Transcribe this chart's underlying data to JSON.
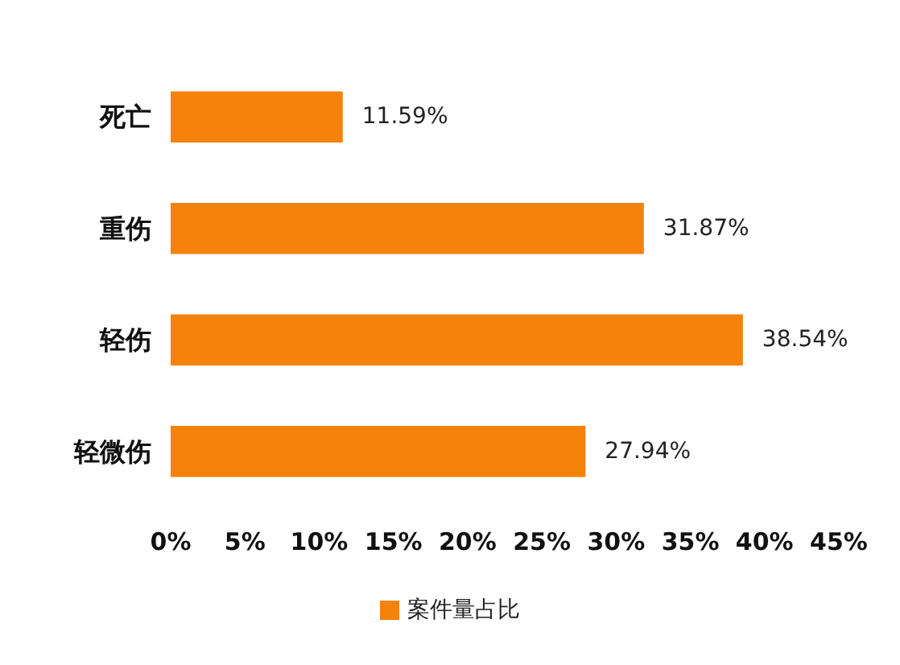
{
  "chart_data": {
    "type": "bar",
    "orientation": "horizontal",
    "categories": [
      "死亡",
      "重伤",
      "轻伤",
      "轻微伤"
    ],
    "series": [
      {
        "name": "案件量占比",
        "color": "#f5820a",
        "values": [
          11.59,
          31.87,
          38.54,
          27.94
        ],
        "value_labels": [
          "11.59%",
          "31.87%",
          "38.54%",
          "27.94%"
        ]
      }
    ],
    "xlim": [
      0,
      45
    ],
    "xticks": [
      {
        "value": 0,
        "label": "0%"
      },
      {
        "value": 5,
        "label": "5%"
      },
      {
        "value": 10,
        "label": "10%"
      },
      {
        "value": 15,
        "label": "15%"
      },
      {
        "value": 20,
        "label": "20%"
      },
      {
        "value": 25,
        "label": "25%"
      },
      {
        "value": 30,
        "label": "30%"
      },
      {
        "value": 35,
        "label": "35%"
      },
      {
        "value": 40,
        "label": "40%"
      },
      {
        "value": 45,
        "label": "45%"
      }
    ],
    "grid": false,
    "legend": "bottom"
  }
}
